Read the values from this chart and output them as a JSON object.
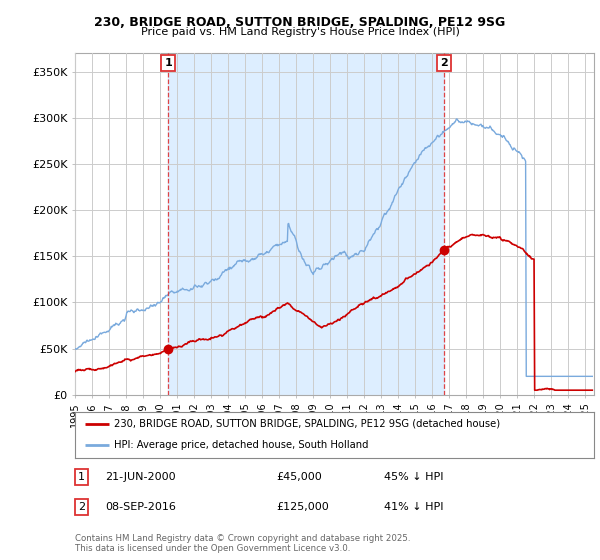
{
  "title": "230, BRIDGE ROAD, SUTTON BRIDGE, SPALDING, PE12 9SG",
  "subtitle": "Price paid vs. HM Land Registry's House Price Index (HPI)",
  "legend_label_red": "230, BRIDGE ROAD, SUTTON BRIDGE, SPALDING, PE12 9SG (detached house)",
  "legend_label_blue": "HPI: Average price, detached house, South Holland",
  "annotation1_label": "1",
  "annotation1_date": "21-JUN-2000",
  "annotation1_price": "£45,000",
  "annotation1_hpi": "45% ↓ HPI",
  "annotation2_label": "2",
  "annotation2_date": "08-SEP-2016",
  "annotation2_price": "£125,000",
  "annotation2_hpi": "41% ↓ HPI",
  "vline1_x": 2000.47,
  "vline2_x": 2016.69,
  "ylabel_ticks": [
    0,
    50000,
    100000,
    150000,
    200000,
    250000,
    300000,
    350000
  ],
  "ylabel_labels": [
    "£0",
    "£50K",
    "£100K",
    "£150K",
    "£200K",
    "£250K",
    "£300K",
    "£350K"
  ],
  "ylim": [
    0,
    370000
  ],
  "xlim_start": 1995.0,
  "xlim_end": 2025.5,
  "background_color": "#ffffff",
  "grid_color": "#cccccc",
  "red_color": "#cc0000",
  "blue_color": "#7aaadd",
  "shade_color": "#ddeeff",
  "vline_color": "#dd3333",
  "footer": "Contains HM Land Registry data © Crown copyright and database right 2025.\nThis data is licensed under the Open Government Licence v3.0."
}
